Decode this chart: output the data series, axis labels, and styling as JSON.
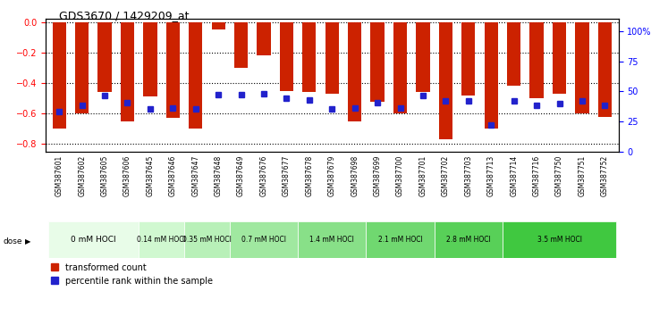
{
  "title": "GDS3670 / 1429209_at",
  "samples": [
    "GSM387601",
    "GSM387602",
    "GSM387605",
    "GSM387606",
    "GSM387645",
    "GSM387646",
    "GSM387647",
    "GSM387648",
    "GSM387649",
    "GSM387676",
    "GSM387677",
    "GSM387678",
    "GSM387679",
    "GSM387698",
    "GSM387699",
    "GSM387700",
    "GSM387701",
    "GSM387702",
    "GSM387703",
    "GSM387713",
    "GSM387714",
    "GSM387716",
    "GSM387750",
    "GSM387751",
    "GSM387752"
  ],
  "bar_values": [
    -0.7,
    -0.6,
    -0.46,
    -0.65,
    -0.49,
    -0.63,
    -0.7,
    -0.05,
    -0.3,
    -0.22,
    -0.45,
    -0.46,
    -0.47,
    -0.65,
    -0.52,
    -0.6,
    -0.46,
    -0.77,
    -0.48,
    -0.7,
    -0.42,
    -0.5,
    -0.47,
    -0.6,
    -0.62
  ],
  "percentile_values": [
    0.3,
    0.35,
    0.42,
    0.37,
    0.32,
    0.33,
    0.32,
    0.43,
    0.43,
    0.44,
    0.4,
    0.39,
    0.32,
    0.33,
    0.37,
    0.33,
    0.42,
    0.38,
    0.38,
    0.2,
    0.38,
    0.35,
    0.36,
    0.38,
    0.35
  ],
  "dose_groups": [
    {
      "label": "0 mM HOCl",
      "start": 0,
      "end": 4,
      "color": "#ccffcc"
    },
    {
      "label": "0.14 mM HOCl",
      "start": 4,
      "end": 6,
      "color": "#aaffaa"
    },
    {
      "label": "0.35 mM HOCl",
      "start": 6,
      "end": 8,
      "color": "#88ee88"
    },
    {
      "label": "0.7 mM HOCl",
      "start": 8,
      "end": 11,
      "color": "#66dd66"
    },
    {
      "label": "1.4 mM HOCl",
      "start": 11,
      "end": 14,
      "color": "#44cc44"
    },
    {
      "label": "2.1 mM HOCl",
      "start": 14,
      "end": 17,
      "color": "#33bb33"
    },
    {
      "label": "2.8 mM HOCl",
      "start": 17,
      "end": 20,
      "color": "#22aa22"
    },
    {
      "label": "3.5 mM HOCl",
      "start": 20,
      "end": 25,
      "color": "#119911"
    }
  ],
  "bar_color": "#cc2200",
  "percentile_color": "#2222cc",
  "ylim_left": [
    -0.85,
    0.02
  ],
  "ylim_right": [
    0,
    110
  ],
  "yticks_left": [
    0,
    -0.2,
    -0.4,
    -0.6,
    -0.8
  ],
  "yticks_right": [
    0,
    25,
    50,
    75,
    100
  ],
  "ylabel_right_labels": [
    "0",
    "25",
    "50",
    "75",
    "100%"
  ]
}
